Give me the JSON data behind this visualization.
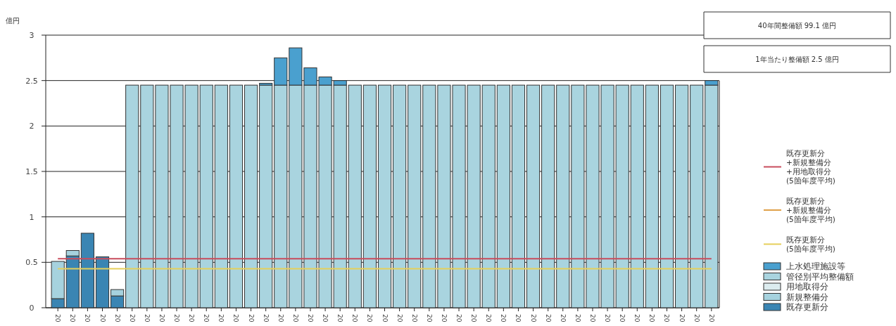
{
  "chart_data": {
    "type": "bar",
    "stacked": true,
    "ylabel": "億円",
    "categories": [
      "20",
      "20",
      "20",
      "20",
      "20",
      "20",
      "20",
      "20",
      "20",
      "20",
      "20",
      "20",
      "20",
      "20",
      "20",
      "20",
      "20",
      "20",
      "20",
      "20",
      "20",
      "20",
      "20",
      "20",
      "20",
      "20",
      "20",
      "20",
      "20",
      "20",
      "20",
      "20",
      "20",
      "20",
      "20",
      "20",
      "20",
      "20",
      "20",
      "20",
      "20",
      "20",
      "20",
      "20",
      "20"
    ],
    "series": [
      {
        "name": "既存更新分",
        "color": "#3a85b3",
        "values": [
          0.1,
          0.57,
          0.82,
          0.56,
          0.13,
          null,
          null,
          null,
          null,
          null,
          null,
          null,
          null,
          null,
          null,
          null,
          null,
          null,
          null,
          null,
          null,
          null,
          null,
          null,
          null,
          null,
          null,
          null,
          null,
          null,
          null,
          null,
          null,
          null,
          null,
          null,
          null,
          null,
          null,
          null,
          null,
          null,
          null,
          null,
          null
        ]
      },
      {
        "name": "新規整備分",
        "color": "#a6d2de",
        "values": [
          0.41,
          0.06,
          null,
          null,
          0.07,
          null,
          null,
          null,
          null,
          null,
          null,
          null,
          null,
          null,
          null,
          null,
          null,
          null,
          null,
          null,
          null,
          null,
          null,
          null,
          null,
          null,
          null,
          null,
          null,
          null,
          null,
          null,
          null,
          null,
          null,
          null,
          null,
          null,
          null,
          null,
          null,
          null,
          null,
          null,
          null
        ]
      },
      {
        "name": "用地取得分",
        "color": "#dcecef",
        "values": [
          null,
          null,
          null,
          null,
          null,
          null,
          null,
          null,
          null,
          null,
          null,
          null,
          null,
          null,
          null,
          null,
          null,
          null,
          null,
          null,
          null,
          null,
          null,
          null,
          null,
          null,
          null,
          null,
          null,
          null,
          null,
          null,
          null,
          null,
          null,
          null,
          null,
          null,
          null,
          null,
          null,
          null,
          null,
          null,
          null
        ]
      },
      {
        "name": "管径別平均整備額",
        "color": "#a9d4df",
        "values": [
          null,
          null,
          null,
          null,
          null,
          2.45,
          2.45,
          2.45,
          2.45,
          2.45,
          2.45,
          2.45,
          2.45,
          2.45,
          2.45,
          2.45,
          2.45,
          2.45,
          2.45,
          2.45,
          2.45,
          2.45,
          2.45,
          2.45,
          2.45,
          2.45,
          2.45,
          2.45,
          2.45,
          2.45,
          2.45,
          2.45,
          2.45,
          2.45,
          2.45,
          2.45,
          2.45,
          2.45,
          2.45,
          2.45,
          2.45,
          2.45,
          2.45,
          2.45,
          2.45
        ]
      },
      {
        "name": "上水処理施設等",
        "color": "#4aa0cf",
        "values": [
          null,
          null,
          null,
          null,
          null,
          null,
          null,
          null,
          null,
          null,
          null,
          null,
          null,
          null,
          0.02,
          0.3,
          0.41,
          0.19,
          0.09,
          0.05,
          null,
          null,
          null,
          null,
          null,
          null,
          null,
          null,
          null,
          null,
          null,
          null,
          null,
          null,
          null,
          null,
          null,
          null,
          null,
          null,
          null,
          null,
          null,
          null,
          0.05
        ]
      },
      {
        "name": "既存更新分\n+新規整備分\n+用地取得分\n(5箇年度平均)",
        "type": "line",
        "color": "#c84c5c",
        "values": [
          0.54,
          0.54,
          0.54,
          0.54,
          0.54,
          0.54,
          0.54,
          0.54,
          0.54,
          0.54,
          0.54,
          0.54,
          0.54,
          0.54,
          0.54,
          0.54,
          0.54,
          0.54,
          0.54,
          0.54,
          0.54,
          0.54,
          0.54,
          0.54,
          0.54,
          0.54,
          0.54,
          0.54,
          0.54,
          0.54,
          0.54,
          0.54,
          0.54,
          0.54,
          0.54,
          0.54,
          0.54,
          0.54,
          0.54,
          0.54,
          0.54,
          0.54,
          0.54,
          0.54,
          0.54
        ]
      },
      {
        "name": "既存更新分\n+新規整備分\n(5箇年度平均)",
        "type": "line",
        "color": "#e0a048",
        "values": [
          null,
          null,
          null,
          null,
          null,
          null,
          null,
          null,
          null,
          null,
          null,
          null,
          null,
          null,
          null,
          null,
          null,
          null,
          null,
          null,
          null,
          null,
          null,
          null,
          null,
          null,
          null,
          null,
          null,
          null,
          null,
          null,
          null,
          null,
          null,
          null,
          null,
          null,
          null,
          null,
          null,
          null,
          null,
          null,
          null
        ]
      },
      {
        "name": "既存更新分\n(5箇年度平均)",
        "type": "line",
        "color": "#e6cf5a",
        "values": [
          0.43,
          0.43,
          0.43,
          0.43,
          0.43,
          0.43,
          0.43,
          0.43,
          0.43,
          0.43,
          0.43,
          0.43,
          0.43,
          0.43,
          0.43,
          0.43,
          0.43,
          0.43,
          0.43,
          0.43,
          0.43,
          0.43,
          0.43,
          0.43,
          0.43,
          0.43,
          0.43,
          0.43,
          0.43,
          0.43,
          0.43,
          0.43,
          0.43,
          0.43,
          0.43,
          0.43,
          0.43,
          0.43,
          0.43,
          0.43,
          0.43,
          0.43,
          0.43,
          0.43,
          0.43
        ]
      }
    ],
    "ylim": [
      0,
      3
    ],
    "yticks": [
      0,
      0.5,
      1,
      1.5,
      2,
      2.5,
      3
    ],
    "grid": "y",
    "legend": "right",
    "annotations": [
      "40年間整備額 99.1 億円",
      "1年当たり整備額 2.5 億円"
    ]
  }
}
